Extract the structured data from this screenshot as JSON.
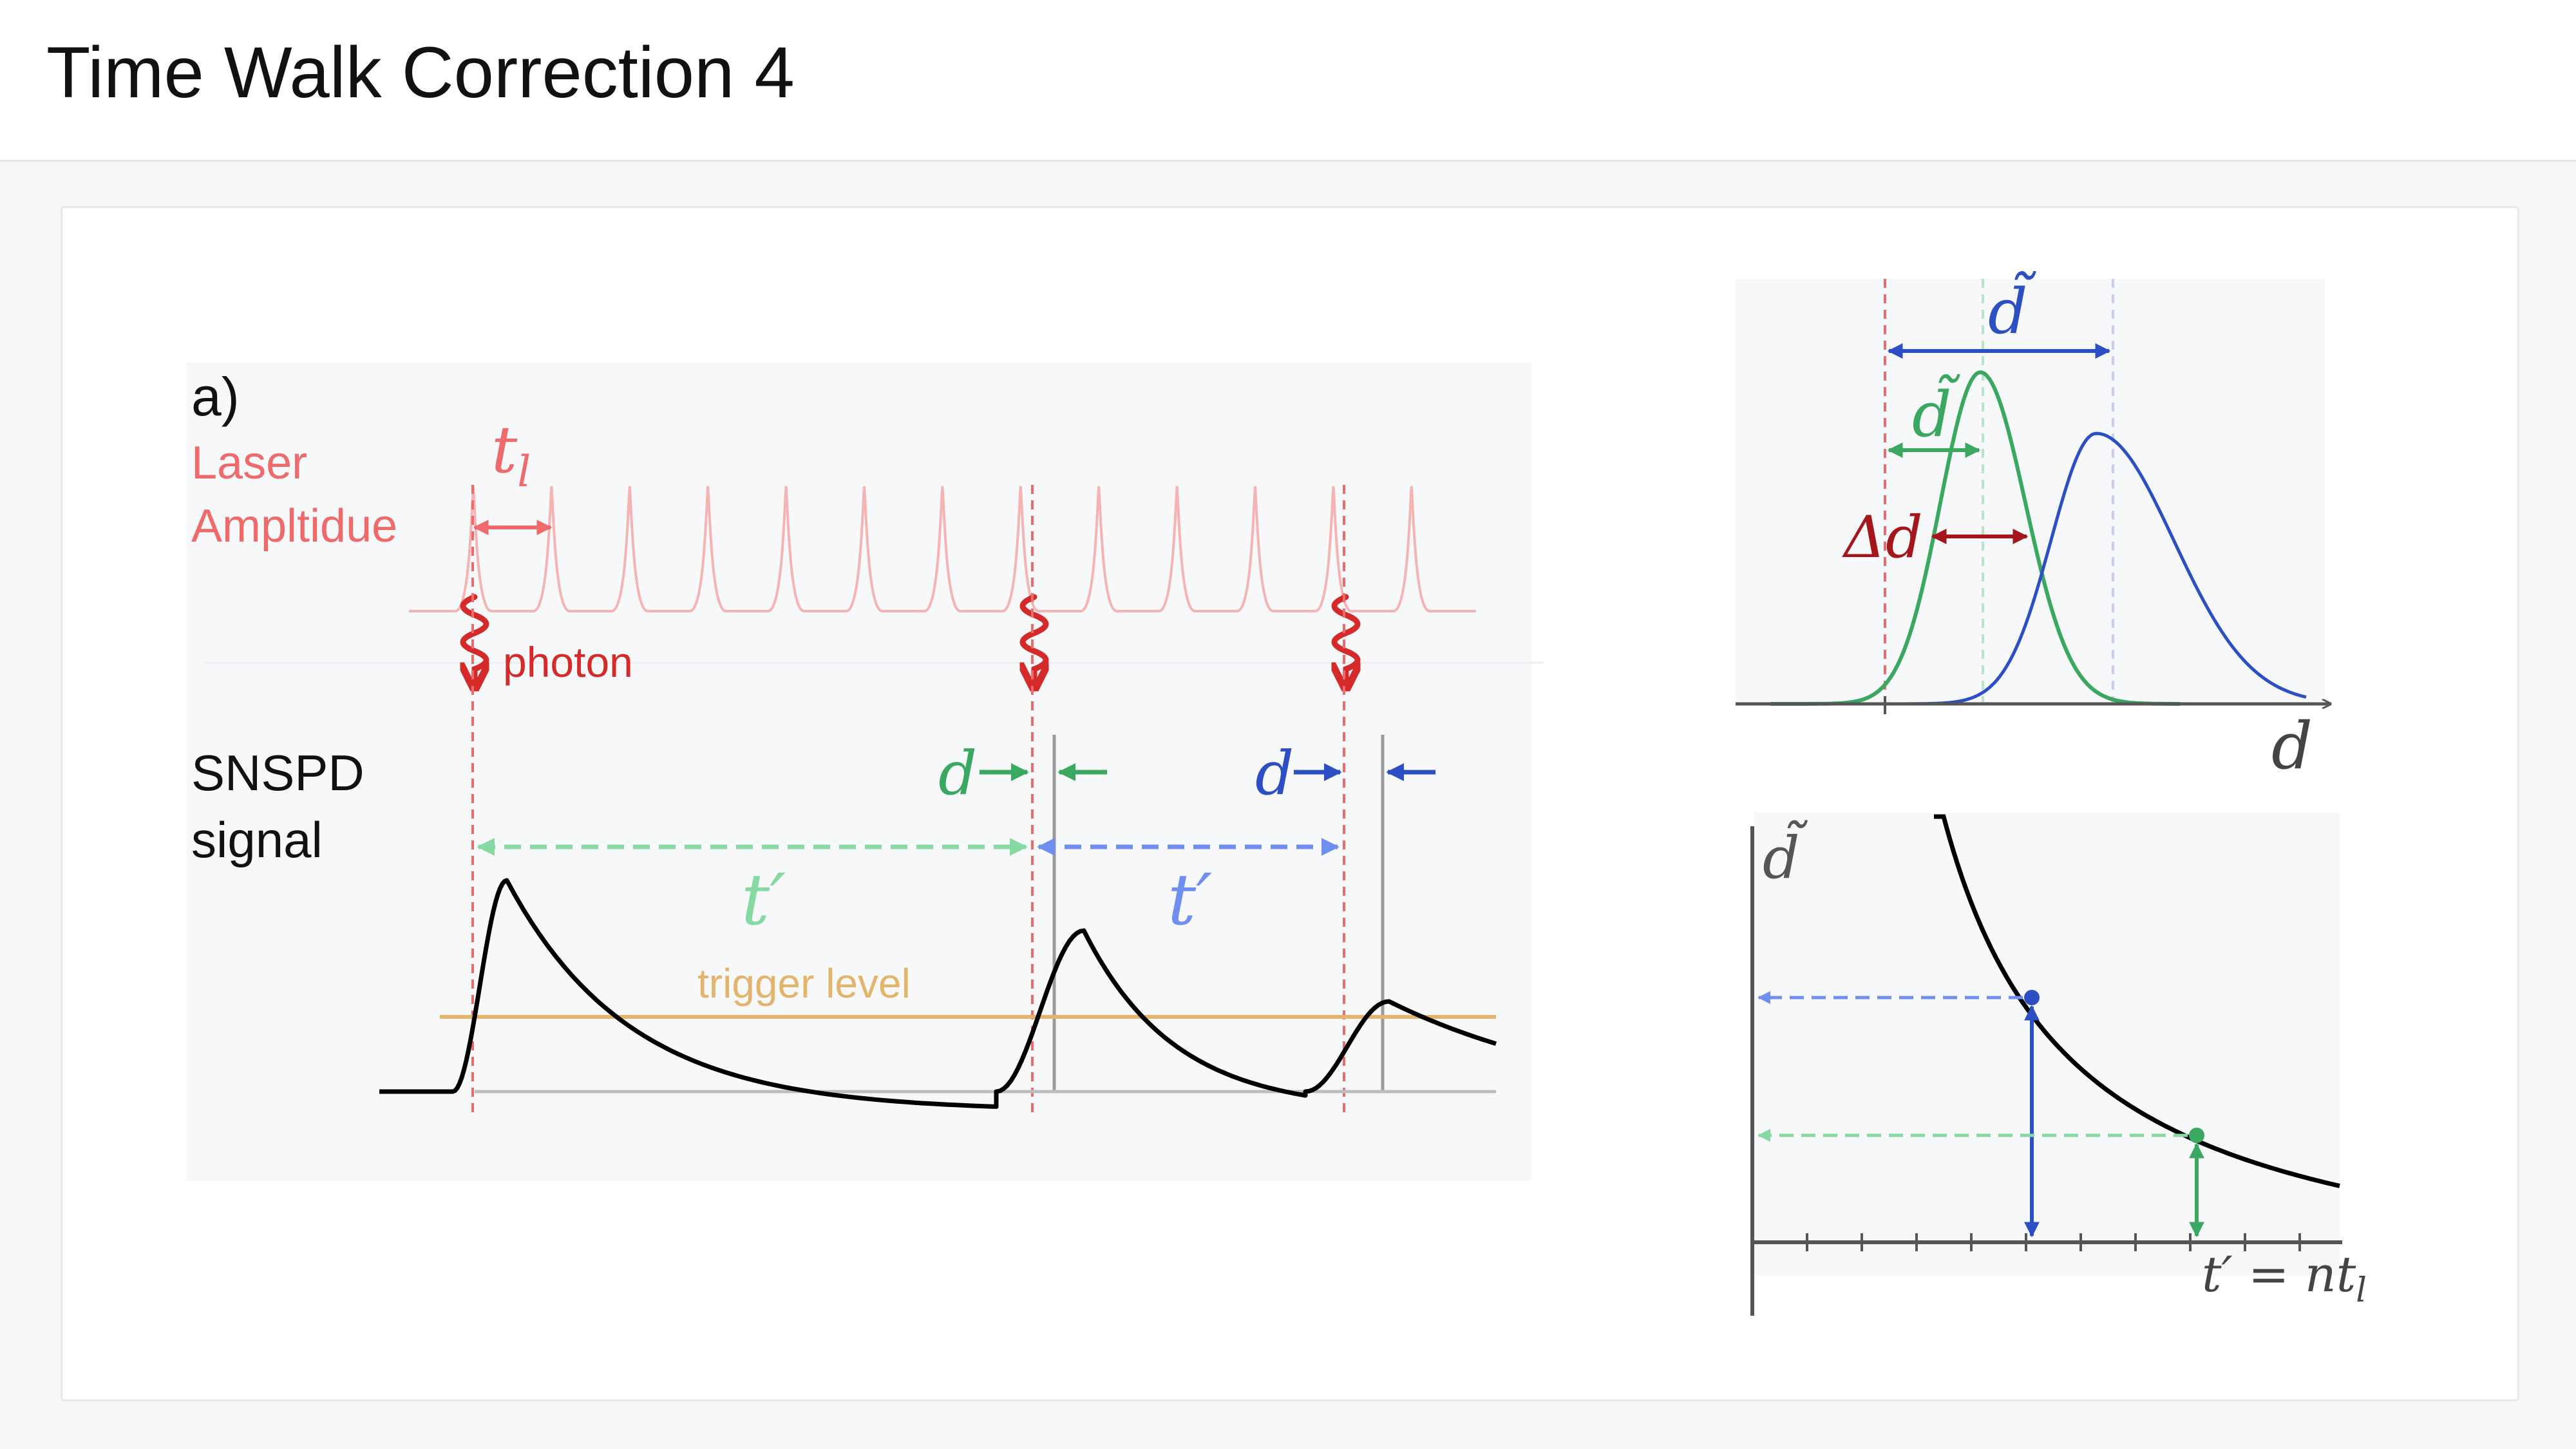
{
  "title": "Time Walk Correction 4",
  "panel_a": {
    "label": "a)",
    "laser_line1": "Laser",
    "laser_line2": "Ampltidue",
    "t_l": "t",
    "t_l_sub": "l",
    "photon": "photon",
    "snspd_line1": "SNSPD",
    "snspd_line2": "signal",
    "d_symbol": "d",
    "t_prime": "t′",
    "trigger": "trigger level"
  },
  "panel_hist": {
    "d_tilde": "d̃",
    "delta_d": "Δd",
    "x_axis_label": "d"
  },
  "panel_curve": {
    "y_axis_label": "d̃",
    "x_axis_label_a": "t′ = nt",
    "x_axis_label_sub": "l"
  },
  "colors": {
    "laser": "#ef6a6a",
    "photon": "#d42a2a",
    "green": "#3aa860",
    "green_light": "#86d9a2",
    "blue": "#2c4fc4",
    "blue_light": "#6f8ef0",
    "dark_red": "#a4161b",
    "trigger": "#e3b56c",
    "panel_bg": "#f7f8fa"
  }
}
